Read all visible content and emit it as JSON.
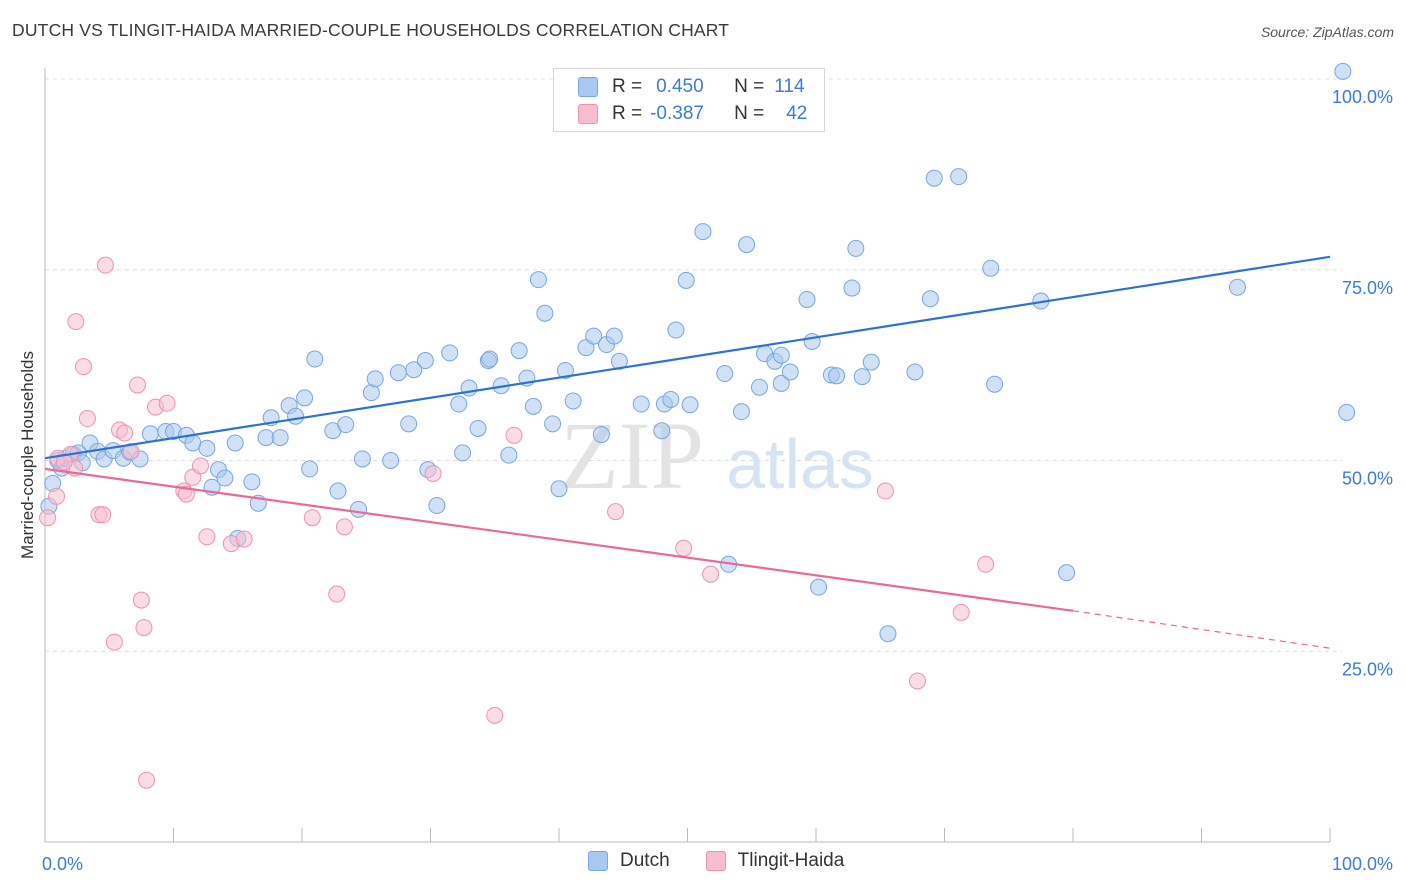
{
  "title": "DUTCH VS TLINGIT-HAIDA MARRIED-COUPLE HOUSEHOLDS CORRELATION CHART",
  "source": "Source: ZipAtlas.com",
  "watermark": {
    "zip": "ZIP",
    "atlas": "atlas"
  },
  "legend": {
    "rows": [
      {
        "r_label": "R =",
        "r_value": "0.450",
        "n_label": "N =",
        "n_value": "114"
      },
      {
        "r_label": "R =",
        "r_value": "-0.387",
        "n_label": "N =",
        "n_value": "42"
      }
    ]
  },
  "colors": {
    "dutch_fill": "#a9c8ef",
    "dutch_stroke": "#7aa6de",
    "dutch_line": "#2d72d2",
    "tlingit_fill": "#f6bfd0",
    "tlingit_stroke": "#ec93b0",
    "tlingit_line": "#e8699a",
    "tick_text": "#3d7bd6",
    "grid": "#dddddd"
  },
  "chart_data": {
    "type": "scatter",
    "title": "DUTCH VS TLINGIT-HAIDA MARRIED-COUPLE HOUSEHOLDS CORRELATION CHART",
    "xlabel": "",
    "ylabel": "Married-couple Households",
    "xlim": [
      0,
      100
    ],
    "ylim": [
      0,
      100
    ],
    "x_tick_labels": [
      "0.0%",
      "100.0%"
    ],
    "y_tick_labels": [
      "100.0%",
      "75.0%",
      "50.0%",
      "25.0%"
    ],
    "y_ticks": [
      100,
      75,
      50,
      25
    ],
    "grid": true,
    "legend_position": "top-center",
    "series": [
      {
        "name": "Dutch",
        "trend": {
          "x0": 0,
          "y0": 50.3,
          "x1": 100,
          "y1": 76.7
        },
        "points": [
          [
            0.3,
            44
          ],
          [
            0.6,
            47
          ],
          [
            1,
            50
          ],
          [
            1.3,
            49
          ],
          [
            1.6,
            50.3
          ],
          [
            2.2,
            50.8
          ],
          [
            2.6,
            51
          ],
          [
            3.5,
            52.3
          ],
          [
            4.1,
            51.2
          ],
          [
            4.6,
            50.2
          ],
          [
            5.3,
            51.3
          ],
          [
            6.1,
            50.3
          ],
          [
            6.6,
            51.1
          ],
          [
            7.4,
            50.2
          ],
          [
            8.2,
            53.5
          ],
          [
            9.4,
            53.8
          ],
          [
            10,
            53.8
          ],
          [
            11,
            53.3
          ],
          [
            11.5,
            52.3
          ],
          [
            12.6,
            51.6
          ],
          [
            13,
            46.5
          ],
          [
            13.5,
            48.8
          ],
          [
            14,
            47.7
          ],
          [
            14.8,
            52.3
          ],
          [
            15,
            39.8
          ],
          [
            16.1,
            47.2
          ],
          [
            16.6,
            44.4
          ],
          [
            17.2,
            53
          ],
          [
            17.6,
            55.6
          ],
          [
            18.3,
            53
          ],
          [
            19,
            57.2
          ],
          [
            19.5,
            55.8
          ],
          [
            20.2,
            58.2
          ],
          [
            20.6,
            48.9
          ],
          [
            21,
            63.3
          ],
          [
            22.4,
            53.9
          ],
          [
            22.8,
            46
          ],
          [
            23.4,
            54.7
          ],
          [
            24.4,
            43.6
          ],
          [
            24.7,
            50.2
          ],
          [
            25.4,
            58.9
          ],
          [
            25.7,
            60.7
          ],
          [
            26.9,
            50
          ],
          [
            27.5,
            61.5
          ],
          [
            28.3,
            54.8
          ],
          [
            28.7,
            61.9
          ],
          [
            29.6,
            63.1
          ],
          [
            29.8,
            48.8
          ],
          [
            30.5,
            44.1
          ],
          [
            31.5,
            64.1
          ],
          [
            32.2,
            57.4
          ],
          [
            32.5,
            51
          ],
          [
            33,
            59.5
          ],
          [
            33.7,
            54.2
          ],
          [
            34.5,
            63.1
          ],
          [
            34.6,
            63.3
          ],
          [
            35.5,
            59.8
          ],
          [
            36.1,
            50.7
          ],
          [
            36.9,
            64.4
          ],
          [
            37.5,
            60.8
          ],
          [
            38,
            57.1
          ],
          [
            38.4,
            73.7
          ],
          [
            38.9,
            69.3
          ],
          [
            39.5,
            54.8
          ],
          [
            40,
            46.3
          ],
          [
            40.5,
            61.8
          ],
          [
            41.1,
            57.8
          ],
          [
            42.1,
            64.8
          ],
          [
            42.7,
            66.3
          ],
          [
            43.3,
            53.4
          ],
          [
            43.7,
            65.2
          ],
          [
            44.3,
            66.3
          ],
          [
            44.7,
            63
          ],
          [
            46.4,
            57.4
          ],
          [
            47.1,
            95
          ],
          [
            48,
            53.9
          ],
          [
            48.2,
            57.4
          ],
          [
            48.7,
            58
          ],
          [
            49.1,
            67.1
          ],
          [
            49.9,
            73.6
          ],
          [
            50.2,
            57.3
          ],
          [
            51.2,
            80
          ],
          [
            52.9,
            61.4
          ],
          [
            53.2,
            36.4
          ],
          [
            54.2,
            56.4
          ],
          [
            54.6,
            78.3
          ],
          [
            55.6,
            59.6
          ],
          [
            56,
            64
          ],
          [
            56.8,
            63
          ],
          [
            57.3,
            63.8
          ],
          [
            57.3,
            60.1
          ],
          [
            58,
            61.6
          ],
          [
            59.3,
            71.1
          ],
          [
            59.7,
            65.6
          ],
          [
            60.2,
            33.4
          ],
          [
            61.2,
            61.2
          ],
          [
            61.6,
            61.1
          ],
          [
            62.8,
            72.6
          ],
          [
            63.1,
            77.8
          ],
          [
            63.6,
            61
          ],
          [
            64.3,
            62.9
          ],
          [
            65.6,
            27.3
          ],
          [
            67.7,
            61.6
          ],
          [
            68.9,
            71.2
          ],
          [
            69.2,
            87
          ],
          [
            71.1,
            87.2
          ],
          [
            73.6,
            75.2
          ],
          [
            73.9,
            60
          ],
          [
            77.5,
            70.9
          ],
          [
            79.5,
            35.3
          ],
          [
            92.8,
            72.7
          ],
          [
            101,
            101
          ],
          [
            101.3,
            56.3
          ],
          [
            2.9,
            49.7
          ]
        ]
      },
      {
        "name": "Tlingit-Haida",
        "trend": {
          "x0": 0,
          "y0": 48.9,
          "x1": 80,
          "y1": 30.3,
          "dash_to_x": 100,
          "dash_to_y": 25.4
        },
        "points": [
          [
            0.2,
            42.5
          ],
          [
            0.9,
            45.3
          ],
          [
            1,
            50.3
          ],
          [
            2,
            50.8
          ],
          [
            2.3,
            49
          ],
          [
            2.4,
            68.2
          ],
          [
            3,
            62.3
          ],
          [
            3.3,
            55.5
          ],
          [
            4.2,
            42.9
          ],
          [
            4.5,
            42.9
          ],
          [
            4.7,
            75.6
          ],
          [
            5.4,
            26.2
          ],
          [
            5.8,
            54
          ],
          [
            6.2,
            53.6
          ],
          [
            6.7,
            51.2
          ],
          [
            7.2,
            59.9
          ],
          [
            7.5,
            31.7
          ],
          [
            7.7,
            28.1
          ],
          [
            7.9,
            8.1
          ],
          [
            8.6,
            57
          ],
          [
            9.5,
            57.5
          ],
          [
            10.8,
            46
          ],
          [
            11,
            45.6
          ],
          [
            11.5,
            47.8
          ],
          [
            12.1,
            49.3
          ],
          [
            12.6,
            40
          ],
          [
            14.5,
            39.1
          ],
          [
            15.5,
            39.7
          ],
          [
            20.8,
            42.5
          ],
          [
            22.7,
            32.5
          ],
          [
            23.3,
            41.3
          ],
          [
            30.2,
            48.3
          ],
          [
            35,
            16.6
          ],
          [
            36.5,
            53.3
          ],
          [
            44.4,
            43.3
          ],
          [
            49.7,
            38.5
          ],
          [
            51.8,
            35.1
          ],
          [
            65.4,
            46
          ],
          [
            67.9,
            21.1
          ],
          [
            71.3,
            30.1
          ],
          [
            73.2,
            36.4
          ],
          [
            1.5,
            49.8
          ]
        ]
      }
    ]
  },
  "bottom_legend": [
    {
      "label": "Dutch"
    },
    {
      "label": "Tlingit-Haida"
    }
  ]
}
